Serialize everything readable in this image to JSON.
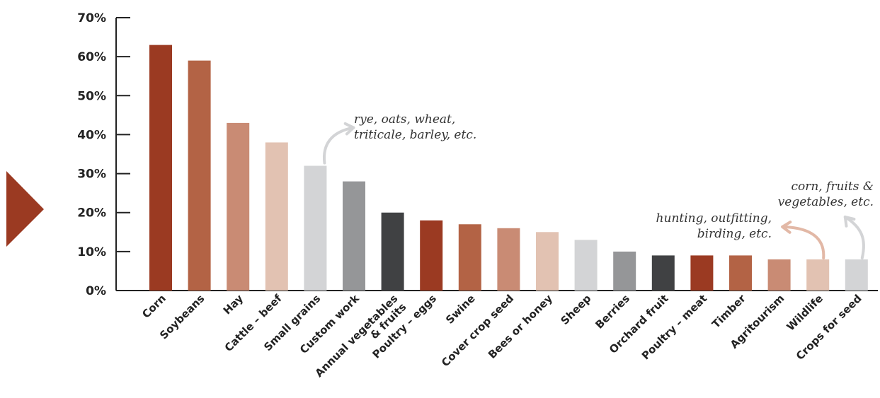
{
  "chart_data": {
    "type": "bar",
    "title": "",
    "xlabel": "",
    "ylabel": "",
    "ylim": [
      0,
      70
    ],
    "yticks": [
      0,
      10,
      20,
      30,
      40,
      50,
      60,
      70
    ],
    "ytick_suffix": "%",
    "grid": false,
    "legend": "none",
    "categories": [
      "Corn",
      "Soybeans",
      "Hay",
      "Cattle – beef",
      "Small grains",
      "Custom work",
      "Annual vegetables & fruits",
      "Poultry – eggs",
      "Swine",
      "Cover crop seed",
      "Bees or honey",
      "Sheep",
      "Berries",
      "Orchard fruit",
      "Poultry – meat",
      "Timber",
      "Agritourism",
      "Wildlife",
      "Crops for seed"
    ],
    "category_lines": [
      [
        "Corn"
      ],
      [
        "Soybeans"
      ],
      [
        "Hay"
      ],
      [
        "Cattle – beef"
      ],
      [
        "Small grains"
      ],
      [
        "Custom work"
      ],
      [
        "Annual vegetables",
        "& fruits"
      ],
      [
        "Poultry – eggs"
      ],
      [
        "Swine"
      ],
      [
        "Cover crop seed"
      ],
      [
        "Bees or honey"
      ],
      [
        "Sheep"
      ],
      [
        "Berries"
      ],
      [
        "Orchard fruit"
      ],
      [
        "Poultry – meat"
      ],
      [
        "Timber"
      ],
      [
        "Agritourism"
      ],
      [
        "Wildlife"
      ],
      [
        "Crops for seed"
      ]
    ],
    "values": [
      63,
      59,
      43,
      38,
      32,
      28,
      20,
      18,
      17,
      16,
      15,
      13,
      10,
      9,
      9,
      9,
      8,
      8,
      8
    ],
    "bar_colors": [
      "#9b3a22",
      "#b36345",
      "#c98b74",
      "#e2c2b2",
      "#d3d4d6",
      "#959698",
      "#404143",
      "#9b3a22",
      "#b36345",
      "#c98b74",
      "#e2c2b2",
      "#d3d4d6",
      "#959698",
      "#404143",
      "#9b3a22",
      "#b36345",
      "#c98b74",
      "#e2c2b2",
      "#d3d4d6"
    ],
    "annotations": [
      {
        "category": "Small grains",
        "lines": [
          "rye, oats, wheat,",
          "triticale, barley, etc."
        ],
        "arrow_color": "#d3d4d6"
      },
      {
        "category": "Wildlife",
        "lines": [
          "hunting, outfitting,",
          "birding, etc."
        ],
        "arrow_color": "#e2b8a6"
      },
      {
        "category": "Crops for seed",
        "lines": [
          "corn, fruits &",
          "vegetables, etc."
        ],
        "arrow_color": "#d3d4d6"
      }
    ]
  },
  "decor": {
    "marker_color": "#9b3a22",
    "axis_color": "#222222"
  }
}
